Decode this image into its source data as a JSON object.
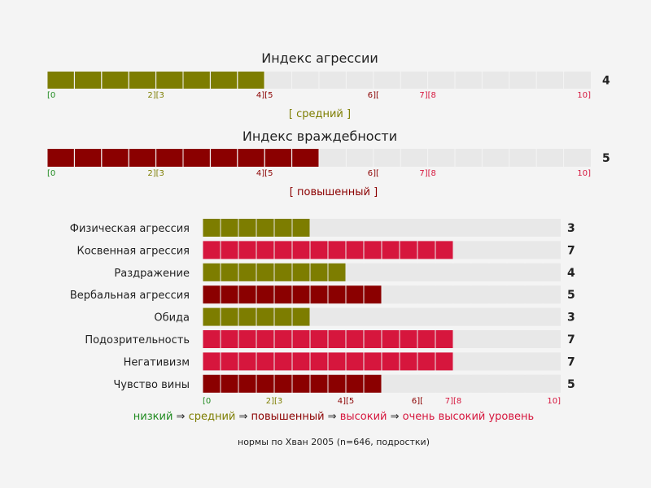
{
  "colors": {
    "background": "#f4f4f4",
    "track": "#e8e8e8",
    "grid": "#f4f4f4",
    "low": "#1f8a1f",
    "medium": "#7d7d00",
    "elevated": "#8b0000",
    "high": "#d6163d",
    "very_high": "#d6163d",
    "text": "#222222"
  },
  "scale_ticks": [
    {
      "label": "[0",
      "tone": "low"
    },
    {
      "label": "2][3",
      "tone": "medium"
    },
    {
      "label": "4][5",
      "tone": "elevated"
    },
    {
      "label": "6][",
      "tone": "elevated"
    },
    {
      "label": "7][8",
      "tone": "high"
    },
    {
      "label": "10]",
      "tone": "high"
    }
  ],
  "chart_data": [
    {
      "type": "bar",
      "title": "Индекс агрессии",
      "xlim": [
        0,
        20
      ],
      "value": 4,
      "value_label": "4",
      "level_label": "[ средний ]",
      "level": "medium"
    },
    {
      "type": "bar",
      "title": "Индекс враждебности",
      "xlim": [
        0,
        20
      ],
      "value": 5,
      "value_label": "5",
      "level_label": "[ повышенный ]",
      "level": "elevated"
    },
    {
      "type": "bar",
      "orientation": "horizontal",
      "xlim": [
        0,
        10
      ],
      "categories": [
        "Физическая агрессия",
        "Косвенная агрессия",
        "Раздражение",
        "Вербальная агрессия",
        "Обида",
        "Подозрительность",
        "Негативизм",
        "Чувство вины"
      ],
      "values": [
        3,
        7,
        4,
        5,
        3,
        7,
        7,
        5
      ],
      "levels": [
        "medium",
        "high",
        "medium",
        "elevated",
        "medium",
        "high",
        "high",
        "elevated"
      ]
    }
  ],
  "legend": [
    {
      "label": "низкий",
      "tone": "low"
    },
    {
      "label": "средний",
      "tone": "medium"
    },
    {
      "label": "повышенный",
      "tone": "elevated"
    },
    {
      "label": "высокий",
      "tone": "high"
    },
    {
      "label": "очень высокий уровень",
      "tone": "very_high"
    }
  ],
  "legend_arrow": "⇒",
  "footnote": "нормы по Хван 2005 (n=646, подростки)"
}
